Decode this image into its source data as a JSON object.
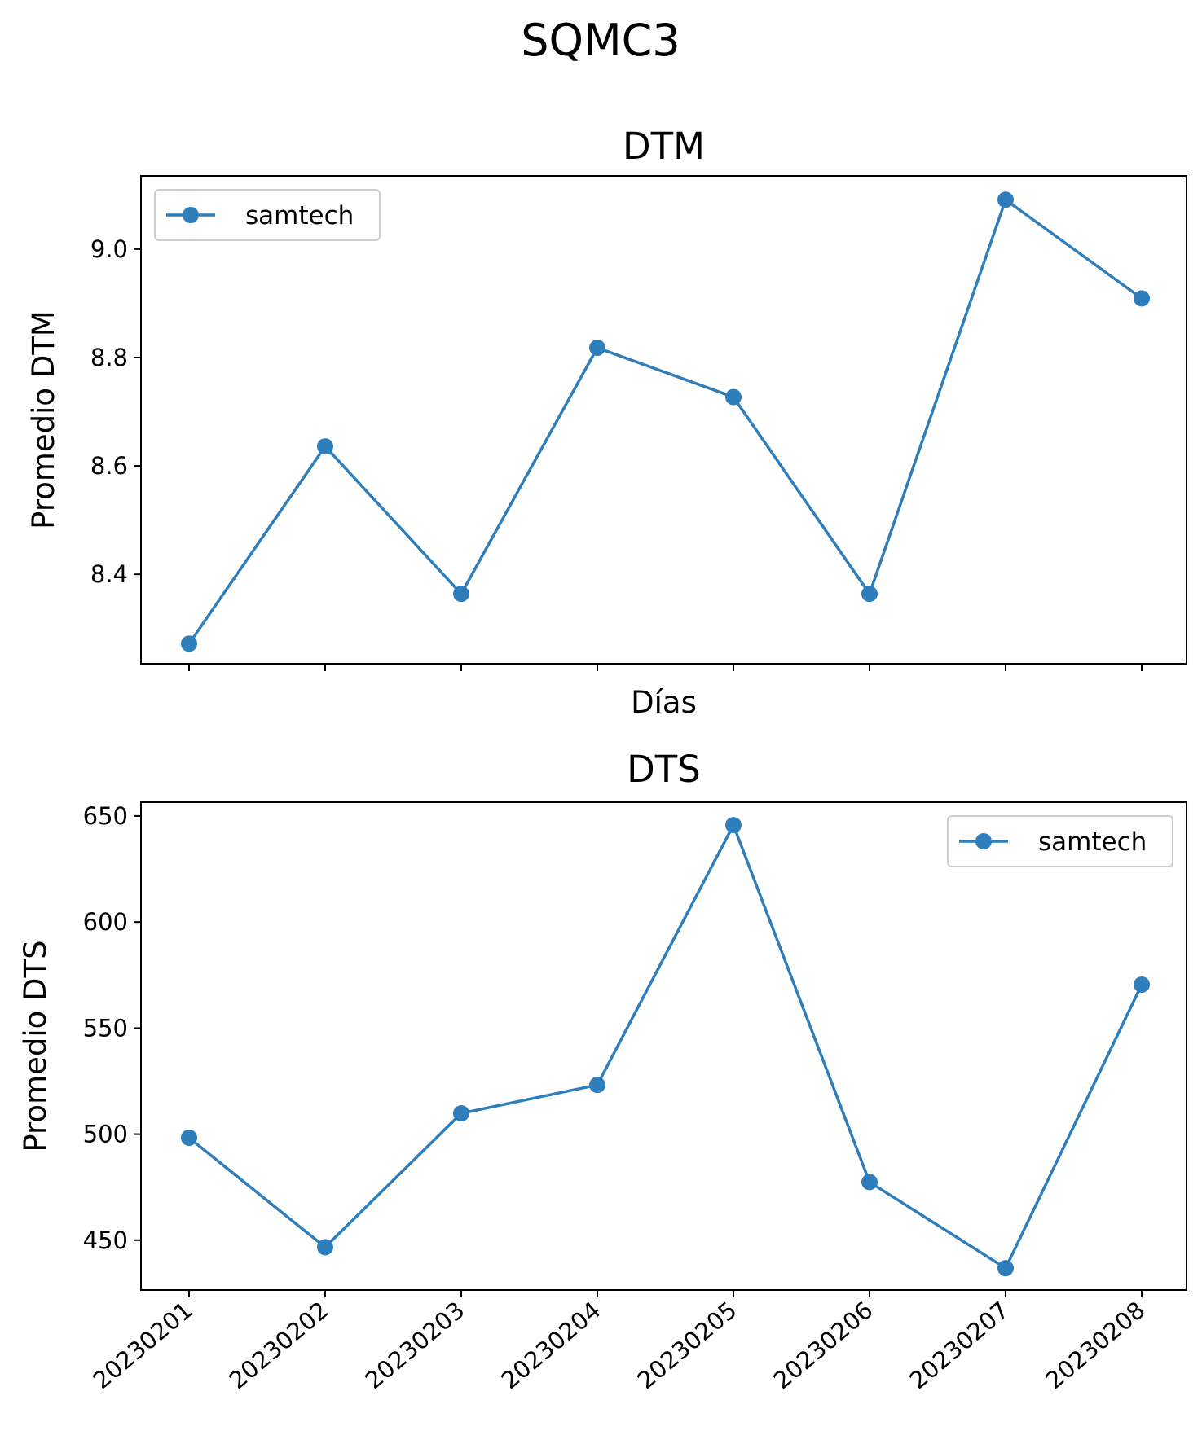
{
  "figure": {
    "title": "SQMC3"
  },
  "chart_data": [
    {
      "type": "line",
      "title": "DTM",
      "xlabel": "Días",
      "ylabel": "Promedio DTM",
      "categories": [
        "20230201",
        "20230202",
        "20230203",
        "20230204",
        "20230205",
        "20230206",
        "20230207",
        "20230208"
      ],
      "show_x_tick_labels": false,
      "series": [
        {
          "name": "samtech",
          "values": [
            8.272,
            8.636,
            8.364,
            8.818,
            8.727,
            8.364,
            9.091,
            8.909
          ]
        }
      ],
      "ylim": [
        8.235,
        9.135
      ],
      "yticks": [
        8.4,
        8.6,
        8.8,
        9.0
      ],
      "ytick_labels": [
        "8.4",
        "8.6",
        "8.8",
        "9.0"
      ],
      "legend": "top-left",
      "grid": false,
      "color": "#2f7ebc"
    },
    {
      "type": "line",
      "title": "DTS",
      "xlabel": "",
      "ylabel": "Promedio DTS",
      "categories": [
        "20230201",
        "20230202",
        "20230203",
        "20230204",
        "20230205",
        "20230206",
        "20230207",
        "20230208"
      ],
      "show_x_tick_labels": true,
      "series": [
        {
          "name": "samtech",
          "values": [
            498.3,
            446.7,
            509.8,
            523.2,
            645.7,
            477.4,
            436.8,
            570.5
          ]
        }
      ],
      "ylim": [
        426.5,
        656.5
      ],
      "yticks": [
        450,
        500,
        550,
        600,
        650
      ],
      "ytick_labels": [
        "450",
        "500",
        "550",
        "600",
        "650"
      ],
      "legend": "top-right",
      "grid": false,
      "color": "#2f7ebc"
    }
  ]
}
